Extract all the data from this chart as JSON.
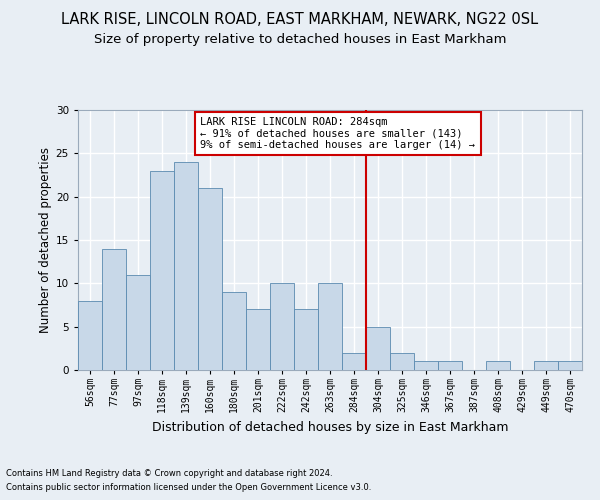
{
  "title": "LARK RISE, LINCOLN ROAD, EAST MARKHAM, NEWARK, NG22 0SL",
  "subtitle": "Size of property relative to detached houses in East Markham",
  "xlabel": "Distribution of detached houses by size in East Markham",
  "ylabel": "Number of detached properties",
  "footnote1": "Contains HM Land Registry data © Crown copyright and database right 2024.",
  "footnote2": "Contains public sector information licensed under the Open Government Licence v3.0.",
  "bar_labels": [
    "56sqm",
    "77sqm",
    "97sqm",
    "118sqm",
    "139sqm",
    "160sqm",
    "180sqm",
    "201sqm",
    "222sqm",
    "242sqm",
    "263sqm",
    "284sqm",
    "304sqm",
    "325sqm",
    "346sqm",
    "367sqm",
    "387sqm",
    "408sqm",
    "429sqm",
    "449sqm",
    "470sqm"
  ],
  "bar_values": [
    8,
    14,
    11,
    23,
    24,
    21,
    9,
    7,
    10,
    7,
    10,
    2,
    5,
    2,
    1,
    1,
    0,
    1,
    0,
    1,
    1
  ],
  "bar_color": "#c8d8e8",
  "bar_edge_color": "#5a8ab0",
  "vline_index": 11,
  "vline_color": "#cc0000",
  "annotation_line1": "LARK RISE LINCOLN ROAD: 284sqm",
  "annotation_line2": "← 91% of detached houses are smaller (143)",
  "annotation_line3": "9% of semi-detached houses are larger (14) →",
  "annotation_box_color": "#cc0000",
  "ylim": [
    0,
    30
  ],
  "yticks": [
    0,
    5,
    10,
    15,
    20,
    25,
    30
  ],
  "fig_background": "#e8eef4",
  "plot_background": "#e8eef4",
  "grid_color": "#ffffff",
  "title_fontsize": 10.5,
  "subtitle_fontsize": 9.5,
  "ylabel_fontsize": 8.5,
  "xlabel_fontsize": 9,
  "tick_fontsize": 7,
  "annotation_fontsize": 7.5,
  "footnote_fontsize": 6
}
